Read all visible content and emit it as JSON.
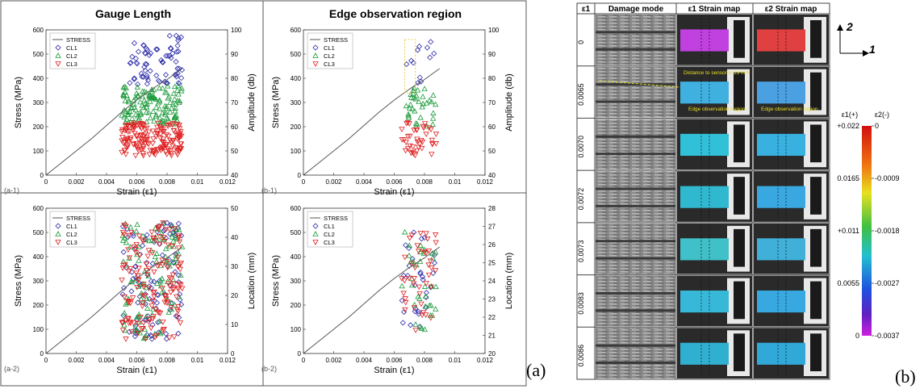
{
  "panel_a": {
    "col_titles": [
      "Gauge Length",
      "Edge observation region"
    ],
    "caption": "(a)"
  },
  "panel_b": {
    "caption": "(b)",
    "header": [
      "ε1",
      "Damage mode",
      "ε1 Strain map",
      "ε2 Strain map"
    ],
    "rows": [
      "0",
      "0.0065",
      "0.0070",
      "0.0072",
      "0.0073",
      "0.0083",
      "0.0086"
    ],
    "axes": {
      "up": "2",
      "right": "1"
    },
    "annotations": {
      "distance": "Distance to sensor is 23 mm",
      "edge1": "Edge observation region",
      "edge2": "Edge observation region"
    },
    "colorbar": {
      "left_title": "ε1(+)",
      "right_title": "ε2(-)",
      "left_ticks": [
        "+0.022",
        "0.0165",
        "+0.011",
        "0.0055",
        "0"
      ],
      "right_ticks": [
        "0",
        "-0.0009",
        "-0.0018",
        "-0.0027",
        "-0.0037"
      ]
    }
  },
  "chart_data": [
    {
      "id": "a-1",
      "type": "scatter",
      "panel_label": "(a-1)",
      "xlabel": "Strain (ε1)",
      "ylabel": "Stress (MPa)",
      "y2label": "Amplitude (db)",
      "xlim": [
        0,
        0.012
      ],
      "ylim": [
        0,
        600
      ],
      "y2lim": [
        40,
        100
      ],
      "xticks": [
        "0",
        "0.002",
        "0.004",
        "0.006",
        "0.008",
        "0.01",
        "0.012"
      ],
      "yticks": [
        "0",
        "100",
        "200",
        "300",
        "400",
        "500",
        "600"
      ],
      "y2ticks": [
        "40",
        "50",
        "60",
        "70",
        "80",
        "90",
        "100"
      ],
      "legend": [
        "STRESS",
        "CL1",
        "CL2",
        "CL3"
      ],
      "stress_curve": [
        [
          0,
          0
        ],
        [
          0.001,
          50
        ],
        [
          0.002,
          100
        ],
        [
          0.003,
          150
        ],
        [
          0.004,
          205
        ],
        [
          0.005,
          260
        ],
        [
          0.006,
          310
        ],
        [
          0.007,
          355
        ],
        [
          0.008,
          395
        ],
        [
          0.009,
          440
        ]
      ],
      "clusters": [
        {
          "name": "CL1",
          "color": "#2b2ba8",
          "marker": "diamond",
          "x_range": [
            0.0055,
            0.009
          ],
          "y_range": [
            77,
            98
          ],
          "y_axis": "right",
          "n": 70
        },
        {
          "name": "CL2",
          "color": "#1a9a3a",
          "marker": "triangle-up",
          "x_range": [
            0.005,
            0.009
          ],
          "y_range": [
            61,
            77
          ],
          "y_axis": "right",
          "n": 130
        },
        {
          "name": "CL3",
          "color": "#e02020",
          "marker": "triangle-down",
          "x_range": [
            0.005,
            0.009
          ],
          "y_range": [
            48,
            62
          ],
          "y_axis": "right",
          "n": 170
        }
      ]
    },
    {
      "id": "b-1",
      "type": "scatter",
      "panel_label": "(b-1)",
      "xlabel": "Strain (ε1)",
      "ylabel": "Stress (MPa)",
      "y2label": "Amplitude (db)",
      "xlim": [
        0,
        0.012
      ],
      "ylim": [
        0,
        600
      ],
      "y2lim": [
        40,
        100
      ],
      "xticks": [
        "0",
        "0.002",
        "0.004",
        "0.006",
        "0.008",
        "0.01",
        "0.012"
      ],
      "yticks": [
        "0",
        "100",
        "200",
        "300",
        "400",
        "500",
        "600"
      ],
      "y2ticks": [
        "40",
        "50",
        "60",
        "70",
        "80",
        "90",
        "100"
      ],
      "legend": [
        "STRESS",
        "CL1",
        "CL2",
        "CL3"
      ],
      "stress_curve": [
        [
          0,
          0
        ],
        [
          0.001,
          50
        ],
        [
          0.002,
          100
        ],
        [
          0.003,
          150
        ],
        [
          0.004,
          205
        ],
        [
          0.005,
          260
        ],
        [
          0.006,
          310
        ],
        [
          0.007,
          355
        ],
        [
          0.008,
          395
        ],
        [
          0.009,
          440
        ]
      ],
      "clusters": [
        {
          "name": "CL1",
          "color": "#2b2ba8",
          "marker": "diamond",
          "x_range": [
            0.0068,
            0.0088
          ],
          "y_range": [
            78,
            96
          ],
          "y_axis": "right",
          "n": 12
        },
        {
          "name": "CL2",
          "color": "#1a9a3a",
          "marker": "triangle-up",
          "x_range": [
            0.0065,
            0.0088
          ],
          "y_range": [
            60,
            76
          ],
          "y_axis": "right",
          "n": 35
        },
        {
          "name": "CL3",
          "color": "#e02020",
          "marker": "triangle-down",
          "x_range": [
            0.0065,
            0.0088
          ],
          "y_range": [
            48,
            62
          ],
          "y_axis": "right",
          "n": 40
        }
      ]
    },
    {
      "id": "a-2",
      "type": "scatter",
      "panel_label": "(a-2)",
      "xlabel": "Strain (ε1)",
      "ylabel": "Stress (MPa)",
      "y2label": "Location (mm)",
      "xlim": [
        0,
        0.012
      ],
      "ylim": [
        0,
        600
      ],
      "y2lim": [
        0,
        50
      ],
      "xticks": [
        "0",
        "0.002",
        "0.004",
        "0.006",
        "0.008",
        "0.01",
        "0.012"
      ],
      "yticks": [
        "0",
        "100",
        "200",
        "300",
        "400",
        "500",
        "600"
      ],
      "y2ticks": [
        "0",
        "10",
        "20",
        "30",
        "40",
        "50"
      ],
      "legend": [
        "STRESS",
        "CL1",
        "CL2",
        "CL3"
      ],
      "stress_curve": [
        [
          0,
          0
        ],
        [
          0.001,
          50
        ],
        [
          0.002,
          100
        ],
        [
          0.003,
          150
        ],
        [
          0.004,
          205
        ],
        [
          0.005,
          260
        ],
        [
          0.006,
          310
        ],
        [
          0.007,
          355
        ],
        [
          0.008,
          395
        ],
        [
          0.009,
          440
        ]
      ],
      "clusters": [
        {
          "name": "CL1",
          "color": "#2b2ba8",
          "marker": "diamond",
          "x_range": [
            0.005,
            0.009
          ],
          "y_range": [
            5,
            45
          ],
          "y_axis": "right",
          "n": 100
        },
        {
          "name": "CL2",
          "color": "#1a9a3a",
          "marker": "triangle-up",
          "x_range": [
            0.005,
            0.009
          ],
          "y_range": [
            5,
            45
          ],
          "y_axis": "right",
          "n": 110
        },
        {
          "name": "CL3",
          "color": "#e02020",
          "marker": "triangle-down",
          "x_range": [
            0.005,
            0.009
          ],
          "y_range": [
            5,
            45
          ],
          "y_axis": "right",
          "n": 150
        }
      ]
    },
    {
      "id": "b-2",
      "type": "scatter",
      "panel_label": "(b-2)",
      "xlabel": "Strain (ε1)",
      "ylabel": "Stress (MPa)",
      "y2label": "Location (mm)",
      "xlim": [
        0,
        0.012
      ],
      "ylim": [
        0,
        600
      ],
      "y2lim": [
        20,
        28
      ],
      "xticks": [
        "0",
        "0.002",
        "0.004",
        "0.006",
        "0.008",
        "0.01",
        "0.012"
      ],
      "yticks": [
        "0",
        "100",
        "200",
        "300",
        "400",
        "500",
        "600"
      ],
      "y2ticks": [
        "20",
        "21",
        "22",
        "23",
        "24",
        "25",
        "26",
        "27",
        "28"
      ],
      "legend": [
        "STRESS",
        "CL1",
        "CL2",
        "CL3"
      ],
      "stress_curve": [
        [
          0,
          0
        ],
        [
          0.001,
          50
        ],
        [
          0.002,
          100
        ],
        [
          0.003,
          150
        ],
        [
          0.004,
          205
        ],
        [
          0.005,
          260
        ],
        [
          0.006,
          310
        ],
        [
          0.007,
          355
        ],
        [
          0.008,
          395
        ],
        [
          0.009,
          440
        ]
      ],
      "clusters": [
        {
          "name": "CL1",
          "color": "#2b2ba8",
          "marker": "diamond",
          "x_range": [
            0.0065,
            0.0088
          ],
          "y_range": [
            21.2,
            26.7
          ],
          "y_axis": "right",
          "n": 30
        },
        {
          "name": "CL2",
          "color": "#1a9a3a",
          "marker": "triangle-up",
          "x_range": [
            0.0065,
            0.0088
          ],
          "y_range": [
            21.2,
            26.7
          ],
          "y_axis": "right",
          "n": 35
        },
        {
          "name": "CL3",
          "color": "#e02020",
          "marker": "triangle-down",
          "x_range": [
            0.0065,
            0.0088
          ],
          "y_range": [
            21.2,
            26.7
          ],
          "y_axis": "right",
          "n": 40
        }
      ]
    }
  ]
}
